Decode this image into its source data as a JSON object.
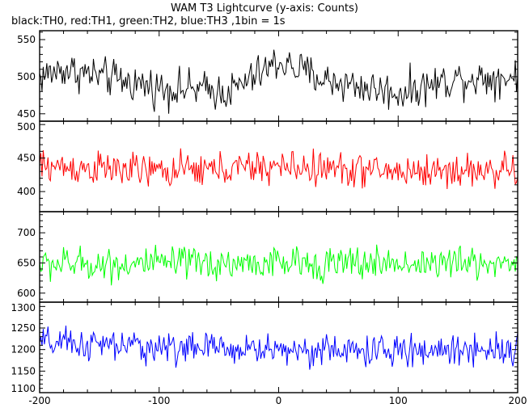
{
  "chart_data": {
    "title": "WAM T3 Lightcurve (y-axis: Counts)",
    "subtitle": "black:TH0, red:TH1, green:TH2, blue:TH3 ,1bin = 1s",
    "type": "line",
    "x": {
      "start": -200,
      "end": 200,
      "step": 1
    },
    "xlim": [
      -200,
      200
    ],
    "xticks": [
      -200,
      -100,
      0,
      100,
      200
    ],
    "panels": [
      {
        "name": "TH0",
        "color": "#000000",
        "ylim": [
          440,
          562
        ],
        "yticks": [
          450,
          500,
          550
        ],
        "base": 497,
        "noise": 22,
        "trend": [
          [
            -200,
            500
          ],
          [
            -180,
            510
          ],
          [
            -100,
            485
          ],
          [
            -40,
            480
          ],
          [
            0,
            520
          ],
          [
            40,
            495
          ],
          [
            100,
            478
          ],
          [
            150,
            498
          ],
          [
            200,
            500
          ]
        ]
      },
      {
        "name": "TH1",
        "color": "#ff0000",
        "ylim": [
          370,
          505
        ],
        "yticks": [
          400,
          450,
          500
        ],
        "base": 435,
        "noise": 22,
        "trend": [
          [
            -200,
            438
          ],
          [
            -100,
            430
          ],
          [
            0,
            437
          ],
          [
            100,
            430
          ],
          [
            200,
            432
          ]
        ]
      },
      {
        "name": "TH2",
        "color": "#00ff00",
        "ylim": [
          585,
          735
        ],
        "yticks": [
          600,
          650,
          700
        ],
        "base": 648,
        "noise": 24,
        "trend": [
          [
            -200,
            648
          ],
          [
            200,
            650
          ]
        ]
      },
      {
        "name": "TH3",
        "color": "#0000ff",
        "ylim": [
          1100,
          1310
        ],
        "yticks": [
          1100,
          1150,
          1200,
          1250,
          1300
        ],
        "base": 1207,
        "noise": 32,
        "trend": [
          [
            -200,
            1215
          ],
          [
            -100,
            1205
          ],
          [
            0,
            1200
          ],
          [
            100,
            1195
          ],
          [
            200,
            1205
          ]
        ]
      }
    ]
  }
}
